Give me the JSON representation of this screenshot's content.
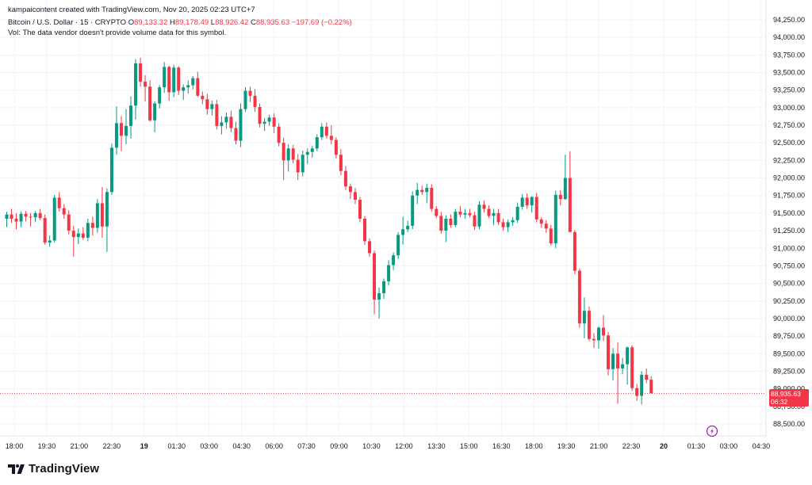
{
  "header": {
    "attribution": "kampaicontent created with TradingView.com, Nov 20, 2025 02:23 UTC+7",
    "symbol": "Bitcoin / U.S. Dollar · 15 · CRYPTO",
    "open_key": "O",
    "open_val": "89,133.32",
    "high_key": "H",
    "high_val": "89,178.49",
    "low_key": "L",
    "low_val": "88,926.42",
    "close_key": "C",
    "close_val": "88,935.63",
    "change": "−197.69 (−0.22%)",
    "vol_note": "Vol: The data vendor doesn't provide volume data for this symbol."
  },
  "price_tag": {
    "price": "88,935.63",
    "countdown": "06:32"
  },
  "logo": {
    "text": "TradingView",
    "icon": "tradingview-logo-icon"
  },
  "timezone_icon": "lightning-clock-icon",
  "colors": {
    "up": "#089981",
    "down": "#f23645",
    "grid": "#f0f3fa",
    "text": "#131722"
  },
  "chart_data": {
    "type": "candlestick",
    "title": "Bitcoin / U.S. Dollar · 15 · CRYPTO",
    "xlabel": "",
    "ylabel": "",
    "ylim": [
      88400,
      94300
    ],
    "grid": true,
    "current_price": 88935.63,
    "y_ticks": [
      "94,250.00",
      "94,000.00",
      "93,750.00",
      "93,500.00",
      "93,250.00",
      "93,000.00",
      "92,750.00",
      "92,500.00",
      "92,250.00",
      "92,000.00",
      "91,750.00",
      "91,500.00",
      "91,250.00",
      "91,000.00",
      "90,750.00",
      "90,500.00",
      "90,250.00",
      "90,000.00",
      "89,750.00",
      "89,500.00",
      "89,250.00",
      "89,000.00",
      "88,750.00",
      "88,500.00"
    ],
    "x_ticks": [
      {
        "label": "18:00",
        "bold": false
      },
      {
        "label": "19:30",
        "bold": false
      },
      {
        "label": "21:00",
        "bold": false
      },
      {
        "label": "22:30",
        "bold": false
      },
      {
        "label": "19",
        "bold": true
      },
      {
        "label": "01:30",
        "bold": false
      },
      {
        "label": "03:00",
        "bold": false
      },
      {
        "label": "04:30",
        "bold": false
      },
      {
        "label": "06:00",
        "bold": false
      },
      {
        "label": "07:30",
        "bold": false
      },
      {
        "label": "09:00",
        "bold": false
      },
      {
        "label": "10:30",
        "bold": false
      },
      {
        "label": "12:00",
        "bold": false
      },
      {
        "label": "13:30",
        "bold": false
      },
      {
        "label": "15:00",
        "bold": false
      },
      {
        "label": "16:30",
        "bold": false
      },
      {
        "label": "18:00",
        "bold": false
      },
      {
        "label": "19:30",
        "bold": false
      },
      {
        "label": "21:00",
        "bold": false
      },
      {
        "label": "22:30",
        "bold": false
      },
      {
        "label": "20",
        "bold": true
      },
      {
        "label": "01:30",
        "bold": false
      },
      {
        "label": "03:00",
        "bold": false
      },
      {
        "label": "04:30",
        "bold": false
      }
    ],
    "candles": [
      [
        91420,
        91520,
        91300,
        91480
      ],
      [
        91480,
        91560,
        91360,
        91420
      ],
      [
        91420,
        91500,
        91270,
        91380
      ],
      [
        91380,
        91520,
        91300,
        91490
      ],
      [
        91490,
        91530,
        91380,
        91450
      ],
      [
        91450,
        91500,
        91310,
        91440
      ],
      [
        91440,
        91530,
        91370,
        91500
      ],
      [
        91500,
        91560,
        91400,
        91430
      ],
      [
        91430,
        91480,
        91050,
        91080
      ],
      [
        91080,
        91180,
        91020,
        91110
      ],
      [
        91110,
        91760,
        91080,
        91720
      ],
      [
        91720,
        91800,
        91520,
        91570
      ],
      [
        91570,
        91630,
        91420,
        91480
      ],
      [
        91480,
        91540,
        91200,
        91250
      ],
      [
        91250,
        91320,
        90880,
        91160
      ],
      [
        91160,
        91280,
        91060,
        91210
      ],
      [
        91210,
        91300,
        91120,
        91150
      ],
      [
        91150,
        91420,
        91100,
        91360
      ],
      [
        91360,
        91450,
        91180,
        91290
      ],
      [
        91290,
        91700,
        91220,
        91640
      ],
      [
        91640,
        91870,
        91150,
        91310
      ],
      [
        91310,
        91850,
        90950,
        91800
      ],
      [
        91800,
        92490,
        91760,
        92430
      ],
      [
        92430,
        93020,
        92330,
        92780
      ],
      [
        92780,
        92880,
        92380,
        92600
      ],
      [
        92600,
        92980,
        92480,
        92740
      ],
      [
        92740,
        93160,
        92560,
        93030
      ],
      [
        93030,
        93690,
        92830,
        93630
      ],
      [
        93630,
        93710,
        93300,
        93370
      ],
      [
        93370,
        93460,
        93090,
        93300
      ],
      [
        93300,
        93390,
        92800,
        92820
      ],
      [
        92820,
        93090,
        92650,
        93060
      ],
      [
        93060,
        93320,
        92990,
        93290
      ],
      [
        93290,
        93650,
        93210,
        93580
      ],
      [
        93580,
        93600,
        93100,
        93220
      ],
      [
        93220,
        93610,
        93150,
        93570
      ],
      [
        93570,
        93590,
        93180,
        93240
      ],
      [
        93240,
        93330,
        93110,
        93290
      ],
      [
        93290,
        93390,
        93200,
        93320
      ],
      [
        93320,
        93450,
        93260,
        93420
      ],
      [
        93420,
        93510,
        93150,
        93170
      ],
      [
        93170,
        93230,
        93050,
        93120
      ],
      [
        93120,
        93200,
        92900,
        92980
      ],
      [
        92980,
        93100,
        92890,
        93050
      ],
      [
        93050,
        93110,
        92690,
        92740
      ],
      [
        92740,
        92880,
        92620,
        92790
      ],
      [
        92790,
        92930,
        92700,
        92870
      ],
      [
        92870,
        92960,
        92650,
        92710
      ],
      [
        92710,
        92800,
        92480,
        92530
      ],
      [
        92530,
        93060,
        92440,
        92980
      ],
      [
        92980,
        93290,
        92940,
        93240
      ],
      [
        93240,
        93300,
        93080,
        93170
      ],
      [
        93170,
        93260,
        92940,
        93010
      ],
      [
        93010,
        93060,
        92720,
        92770
      ],
      [
        92770,
        92850,
        92670,
        92800
      ],
      [
        92800,
        92900,
        92740,
        92860
      ],
      [
        92860,
        92920,
        92640,
        92730
      ],
      [
        92730,
        92780,
        92450,
        92500
      ],
      [
        92500,
        92570,
        91970,
        92250
      ],
      [
        92250,
        92480,
        92090,
        92420
      ],
      [
        92420,
        92470,
        92210,
        92260
      ],
      [
        92260,
        92340,
        91970,
        92080
      ],
      [
        92080,
        92390,
        92020,
        92330
      ],
      [
        92330,
        92420,
        92200,
        92370
      ],
      [
        92370,
        92460,
        92290,
        92420
      ],
      [
        92420,
        92620,
        92380,
        92580
      ],
      [
        92580,
        92780,
        92540,
        92730
      ],
      [
        92730,
        92790,
        92560,
        92600
      ],
      [
        92600,
        92750,
        92480,
        92540
      ],
      [
        92540,
        92580,
        92280,
        92330
      ],
      [
        92330,
        92410,
        92040,
        92100
      ],
      [
        92100,
        92170,
        91830,
        91880
      ],
      [
        91880,
        91920,
        91700,
        91800
      ],
      [
        91800,
        91860,
        91630,
        91690
      ],
      [
        91690,
        91730,
        91370,
        91420
      ],
      [
        91420,
        91460,
        91050,
        91100
      ],
      [
        91100,
        91140,
        90880,
        90930
      ],
      [
        90930,
        90970,
        90060,
        90270
      ],
      [
        90270,
        90440,
        90000,
        90360
      ],
      [
        90360,
        90570,
        90280,
        90530
      ],
      [
        90530,
        90830,
        90470,
        90760
      ],
      [
        90760,
        90940,
        90690,
        90900
      ],
      [
        90900,
        91230,
        90850,
        91190
      ],
      [
        91190,
        91450,
        91050,
        91270
      ],
      [
        91270,
        91390,
        91230,
        91320
      ],
      [
        91320,
        91810,
        91270,
        91750
      ],
      [
        91750,
        91930,
        91630,
        91830
      ],
      [
        91830,
        91890,
        91760,
        91800
      ],
      [
        91800,
        91920,
        91640,
        91860
      ],
      [
        91860,
        91910,
        91520,
        91560
      ],
      [
        91560,
        91600,
        91430,
        91460
      ],
      [
        91460,
        91520,
        91210,
        91250
      ],
      [
        91250,
        91470,
        91090,
        91420
      ],
      [
        91420,
        91480,
        91290,
        91330
      ],
      [
        91330,
        91560,
        91300,
        91520
      ],
      [
        91520,
        91600,
        91440,
        91480
      ],
      [
        91480,
        91560,
        91420,
        91500
      ],
      [
        91500,
        91560,
        91440,
        91470
      ],
      [
        91470,
        91520,
        91260,
        91310
      ],
      [
        91310,
        91670,
        91270,
        91620
      ],
      [
        91620,
        91680,
        91510,
        91560
      ],
      [
        91560,
        91610,
        91430,
        91460
      ],
      [
        91460,
        91560,
        91330,
        91500
      ],
      [
        91500,
        91560,
        91330,
        91370
      ],
      [
        91370,
        91420,
        91250,
        91300
      ],
      [
        91300,
        91410,
        91230,
        91370
      ],
      [
        91370,
        91440,
        91320,
        91400
      ],
      [
        91400,
        91650,
        91360,
        91590
      ],
      [
        91590,
        91770,
        91550,
        91720
      ],
      [
        91720,
        91780,
        91560,
        91610
      ],
      [
        91610,
        91740,
        91510,
        91730
      ],
      [
        91730,
        91790,
        91370,
        91410
      ],
      [
        91410,
        91440,
        91290,
        91350
      ],
      [
        91350,
        91400,
        91220,
        91280
      ],
      [
        91280,
        91330,
        91040,
        91070
      ],
      [
        91070,
        91820,
        91000,
        91760
      ],
      [
        91760,
        91830,
        91610,
        91700
      ],
      [
        91700,
        92330,
        91690,
        92000
      ],
      [
        92000,
        92380,
        91240,
        91230
      ],
      [
        91230,
        91260,
        90630,
        90680
      ],
      [
        90680,
        90710,
        89870,
        89930
      ],
      [
        89930,
        90300,
        89720,
        90110
      ],
      [
        90110,
        90170,
        89680,
        89710
      ],
      [
        89710,
        89790,
        89580,
        89690
      ],
      [
        89690,
        89890,
        89570,
        89870
      ],
      [
        89870,
        90050,
        89680,
        89760
      ],
      [
        89760,
        89810,
        89190,
        89280
      ],
      [
        89280,
        89580,
        89120,
        89500
      ],
      [
        89500,
        89660,
        88790,
        89290
      ],
      [
        89290,
        89440,
        89210,
        89350
      ],
      [
        89350,
        89600,
        89060,
        89590
      ],
      [
        89590,
        89620,
        88970,
        89010
      ],
      [
        89010,
        89070,
        88830,
        88900
      ],
      [
        88900,
        89250,
        88780,
        89200
      ],
      [
        89200,
        89290,
        89080,
        89130
      ],
      [
        89130,
        89180,
        88930,
        88940
      ]
    ]
  }
}
